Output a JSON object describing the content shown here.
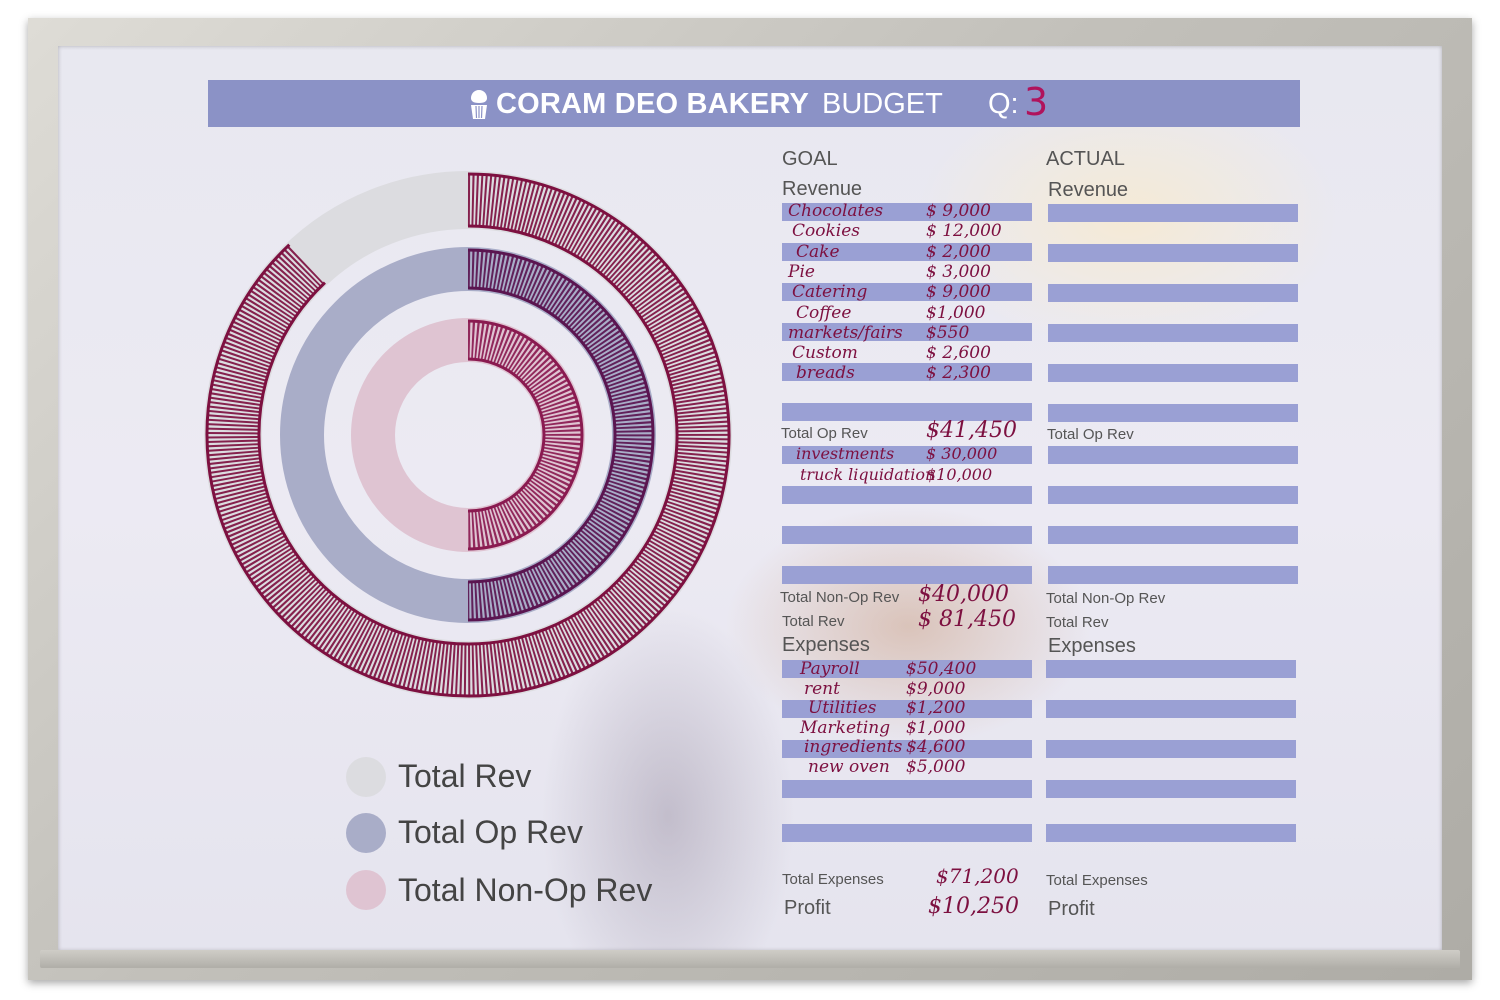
{
  "header": {
    "brand": "CORAM DEO BAKERY",
    "title": "BUDGET",
    "quarter_label": "Q:",
    "quarter_value": "3"
  },
  "goal": {
    "heading": "GOAL",
    "revenue_label": "Revenue",
    "revenue_items": [
      {
        "name": "Chocolates",
        "amount": "$ 9,000"
      },
      {
        "name": "Cookies",
        "amount": "$ 12,000"
      },
      {
        "name": "Cake",
        "amount": "$ 2,000"
      },
      {
        "name": "Pie",
        "amount": "$ 3,000"
      },
      {
        "name": "Catering",
        "amount": "$ 9,000"
      },
      {
        "name": "Coffee",
        "amount": "$1,000"
      },
      {
        "name": "markets/fairs",
        "amount": "$550"
      },
      {
        "name": "Custom",
        "amount": "$ 2,600"
      },
      {
        "name": "breads",
        "amount": "$ 2,300"
      }
    ],
    "total_op_rev_label": "Total Op Rev",
    "total_op_rev": "$41,450",
    "non_op_items": [
      {
        "name": "investments",
        "amount": "$ 30,000"
      },
      {
        "name": "truck liquidation",
        "amount": "$10,000"
      }
    ],
    "total_non_op_rev_label": "Total Non-Op Rev",
    "total_non_op_rev": "$40,000",
    "total_rev_label": "Total Rev",
    "total_rev": "$ 81,450",
    "expenses_label": "Expenses",
    "expense_items": [
      {
        "name": "Payroll",
        "amount": "$50,400"
      },
      {
        "name": "rent",
        "amount": "$9,000"
      },
      {
        "name": "Utilities",
        "amount": "$1,200"
      },
      {
        "name": "Marketing",
        "amount": "$1,000"
      },
      {
        "name": "ingredients",
        "amount": "$4,600"
      },
      {
        "name": "new oven",
        "amount": "$5,000"
      }
    ],
    "total_expenses_label": "Total Expenses",
    "total_expenses": "$71,200",
    "profit_label": "Profit",
    "profit": "$10,250"
  },
  "actual": {
    "heading": "ACTUAL",
    "revenue_label": "Revenue",
    "total_op_rev_label": "Total Op Rev",
    "total_non_op_rev_label": "Total Non-Op Rev",
    "total_rev_label": "Total Rev",
    "expenses_label": "Expenses",
    "total_expenses_label": "Total Expenses",
    "profit_label": "Profit"
  },
  "legend": [
    {
      "label": "Total Rev",
      "color": "#dcdce0"
    },
    {
      "label": "Total Op Rev",
      "color": "#a9adc8"
    },
    {
      "label": "Total Non-Op Rev",
      "color": "#dfc4d2"
    }
  ],
  "colors": {
    "header_bar": "#8b92c6",
    "strip": "#9aa0d4",
    "marker": "#7d1040"
  },
  "chart_data": {
    "type": "pie",
    "rings": [
      {
        "name": "Total Rev",
        "value_fraction": 0.88
      },
      {
        "name": "Total Op Rev",
        "value_fraction": 0.5
      },
      {
        "name": "Total Non-Op Rev",
        "value_fraction": 0.5
      }
    ]
  }
}
